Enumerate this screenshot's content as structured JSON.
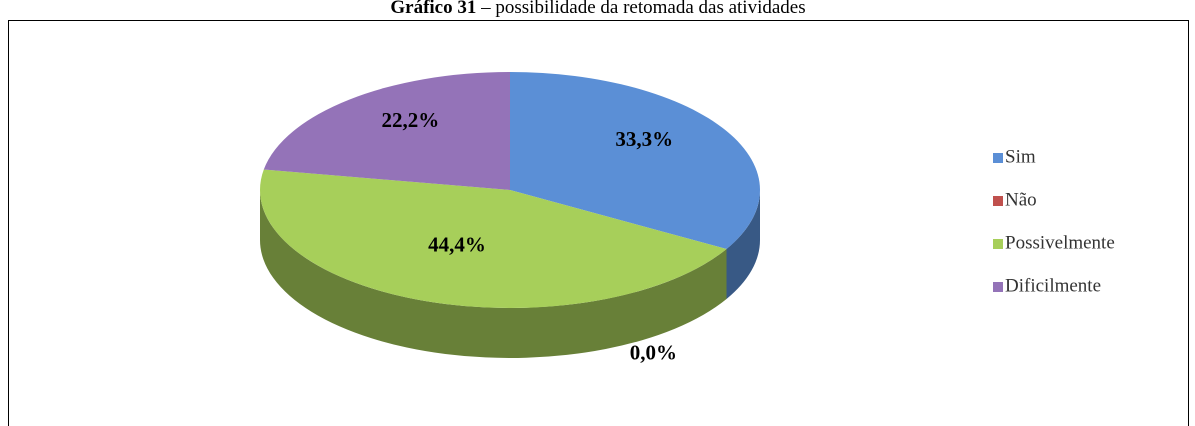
{
  "chart_data": {
    "type": "pie3d",
    "title_label": "Gráfico 31",
    "title": "– possibilidade da retomada das atividades",
    "categories": [
      "Sim",
      "Não",
      "Possivelmente",
      "Dificilmente"
    ],
    "values": [
      33.3,
      0,
      44.4,
      22.2
    ],
    "value_labels": [
      "33,3%",
      "0,0%",
      "44,4%",
      "22,2%"
    ],
    "colors": [
      "#5b8fd6",
      "#c0504d",
      "#a7cf5a",
      "#9473b8"
    ],
    "legend": "right"
  }
}
